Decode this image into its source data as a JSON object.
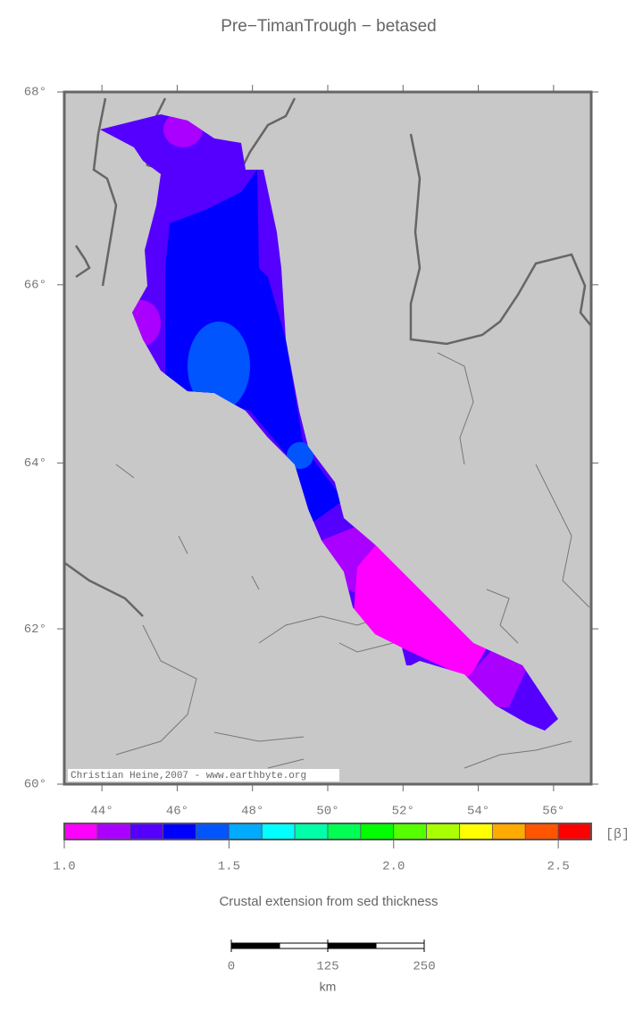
{
  "title": "Pre−TimanTrough − betased",
  "map": {
    "lonlim": [
      43,
      57
    ],
    "latlim": [
      60,
      68
    ],
    "lat_ticks": [
      {
        "value": 60,
        "label": "60°"
      },
      {
        "value": 62,
        "label": "62°"
      },
      {
        "value": 64,
        "label": "64°"
      },
      {
        "value": 66,
        "label": "66°"
      },
      {
        "value": 68,
        "label": "68°"
      }
    ],
    "lon_ticks": [
      {
        "value": 44,
        "label": "44°"
      },
      {
        "value": 46,
        "label": "46°"
      },
      {
        "value": 48,
        "label": "48°"
      },
      {
        "value": 50,
        "label": "50°"
      },
      {
        "value": 52,
        "label": "52°"
      },
      {
        "value": 54,
        "label": "54°"
      },
      {
        "value": 56,
        "label": "56°"
      }
    ],
    "credit": "Christian Heine,2007 - www.earthbyte.org"
  },
  "colorbar": {
    "range": [
      1,
      2.6
    ],
    "colors": [
      "#ff00ff",
      "#aa00ff",
      "#5500ff",
      "#0000ff",
      "#0055ff",
      "#00aaff",
      "#00ffff",
      "#00ffaa",
      "#00ff55",
      "#00ff00",
      "#55ff00",
      "#aaff00",
      "#ffff00",
      "#ffaa00",
      "#ff5500",
      "#ff0000"
    ],
    "ticks": [
      {
        "value": 1,
        "label": "1.0"
      },
      1.5,
      {
        "value": 2,
        "label": "2.0"
      },
      2.5
    ],
    "unit": "[β]",
    "label": "Crustal extension from sed thickness"
  },
  "scale_bar": {
    "range": [
      0,
      250
    ],
    "ticks": [
      0,
      125,
      250
    ],
    "unit": "km"
  }
}
